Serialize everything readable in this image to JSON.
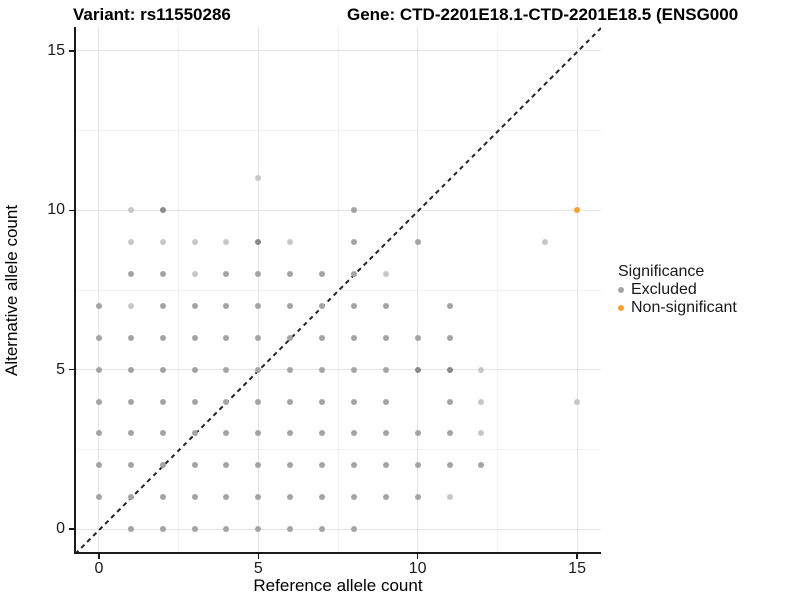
{
  "chart_data": {
    "type": "scatter",
    "titles": {
      "variant": "Variant: rs11550286",
      "gene": "Gene: CTD-2201E18.1-CTD-2201E18.5 (ENSG000"
    },
    "xlabel": "Reference allele count",
    "ylabel": "Alternative allele count",
    "xlim": [
      -0.75,
      15.75
    ],
    "ylim": [
      -0.75,
      15.75
    ],
    "x_ticks": [
      0,
      5,
      10,
      15
    ],
    "y_ticks": [
      0,
      5,
      10,
      15
    ],
    "minor_ticks": [
      2.5,
      7.5,
      12.5
    ],
    "grid": "major and minor, light gray, on white background",
    "identity_line": "black dashed y=x diagonal",
    "colors": {
      "excluded_light": "#C7C7C7",
      "excluded_mid": "#A4A4A4",
      "excluded_dark": "#8A8A8A",
      "non_significant": "#F9A02B",
      "grid_major": "#E4E4E4",
      "grid_minor": "#F2F2F2",
      "axis": "#1A1A1A"
    },
    "legend": {
      "title": "Significance",
      "position": "right",
      "items": [
        {
          "label": "Excluded",
          "color": "#A4A4A4"
        },
        {
          "label": "Non-significant",
          "color": "#F9A02B"
        }
      ]
    },
    "series": [
      {
        "name": "Excluded",
        "points": [
          [
            1,
            0,
            "m"
          ],
          [
            2,
            0,
            "m"
          ],
          [
            3,
            0,
            "m"
          ],
          [
            4,
            0,
            "m"
          ],
          [
            5,
            0,
            "m"
          ],
          [
            6,
            0,
            "m"
          ],
          [
            7,
            0,
            "m"
          ],
          [
            8,
            0,
            "m"
          ],
          [
            0,
            1,
            "m"
          ],
          [
            1,
            1,
            "m"
          ],
          [
            2,
            1,
            "m"
          ],
          [
            3,
            1,
            "m"
          ],
          [
            4,
            1,
            "m"
          ],
          [
            5,
            1,
            "m"
          ],
          [
            6,
            1,
            "m"
          ],
          [
            7,
            1,
            "m"
          ],
          [
            8,
            1,
            "m"
          ],
          [
            9,
            1,
            "m"
          ],
          [
            10,
            1,
            "m"
          ],
          [
            11,
            1,
            "l"
          ],
          [
            0,
            2,
            "m"
          ],
          [
            1,
            2,
            "m"
          ],
          [
            2,
            2,
            "m"
          ],
          [
            3,
            2,
            "m"
          ],
          [
            4,
            2,
            "m"
          ],
          [
            5,
            2,
            "m"
          ],
          [
            6,
            2,
            "m"
          ],
          [
            7,
            2,
            "m"
          ],
          [
            8,
            2,
            "m"
          ],
          [
            9,
            2,
            "m"
          ],
          [
            10,
            2,
            "m"
          ],
          [
            11,
            2,
            "m"
          ],
          [
            12,
            2,
            "m"
          ],
          [
            0,
            3,
            "m"
          ],
          [
            1,
            3,
            "m"
          ],
          [
            2,
            3,
            "m"
          ],
          [
            3,
            3,
            "m"
          ],
          [
            4,
            3,
            "m"
          ],
          [
            5,
            3,
            "m"
          ],
          [
            6,
            3,
            "m"
          ],
          [
            7,
            3,
            "m"
          ],
          [
            8,
            3,
            "m"
          ],
          [
            9,
            3,
            "m"
          ],
          [
            10,
            3,
            "m"
          ],
          [
            11,
            3,
            "m"
          ],
          [
            12,
            3,
            "l"
          ],
          [
            0,
            4,
            "m"
          ],
          [
            1,
            4,
            "m"
          ],
          [
            2,
            4,
            "m"
          ],
          [
            3,
            4,
            "m"
          ],
          [
            4,
            4,
            "m"
          ],
          [
            5,
            4,
            "m"
          ],
          [
            6,
            4,
            "m"
          ],
          [
            7,
            4,
            "m"
          ],
          [
            8,
            4,
            "m"
          ],
          [
            9,
            4,
            "m"
          ],
          [
            11,
            4,
            "m"
          ],
          [
            12,
            4,
            "l"
          ],
          [
            15,
            4,
            "l"
          ],
          [
            0,
            5,
            "m"
          ],
          [
            1,
            5,
            "m"
          ],
          [
            2,
            5,
            "m"
          ],
          [
            3,
            5,
            "m"
          ],
          [
            4,
            5,
            "m"
          ],
          [
            5,
            5,
            "m"
          ],
          [
            6,
            5,
            "m"
          ],
          [
            7,
            5,
            "m"
          ],
          [
            8,
            5,
            "m"
          ],
          [
            9,
            5,
            "m"
          ],
          [
            10,
            5,
            "d"
          ],
          [
            11,
            5,
            "d"
          ],
          [
            12,
            5,
            "l"
          ],
          [
            0,
            6,
            "m"
          ],
          [
            1,
            6,
            "m"
          ],
          [
            2,
            6,
            "m"
          ],
          [
            3,
            6,
            "m"
          ],
          [
            4,
            6,
            "m"
          ],
          [
            5,
            6,
            "m"
          ],
          [
            6,
            6,
            "m"
          ],
          [
            7,
            6,
            "m"
          ],
          [
            8,
            6,
            "m"
          ],
          [
            9,
            6,
            "m"
          ],
          [
            10,
            6,
            "m"
          ],
          [
            11,
            6,
            "m"
          ],
          [
            0,
            7,
            "m"
          ],
          [
            1,
            7,
            "l"
          ],
          [
            2,
            7,
            "m"
          ],
          [
            3,
            7,
            "m"
          ],
          [
            4,
            7,
            "m"
          ],
          [
            5,
            7,
            "m"
          ],
          [
            6,
            7,
            "m"
          ],
          [
            7,
            7,
            "m"
          ],
          [
            8,
            7,
            "m"
          ],
          [
            9,
            7,
            "m"
          ],
          [
            11,
            7,
            "m"
          ],
          [
            1,
            8,
            "m"
          ],
          [
            2,
            8,
            "m"
          ],
          [
            3,
            8,
            "l"
          ],
          [
            4,
            8,
            "m"
          ],
          [
            5,
            8,
            "m"
          ],
          [
            6,
            8,
            "m"
          ],
          [
            7,
            8,
            "m"
          ],
          [
            8,
            8,
            "m"
          ],
          [
            9,
            8,
            "l"
          ],
          [
            1,
            9,
            "l"
          ],
          [
            2,
            9,
            "l"
          ],
          [
            3,
            9,
            "l"
          ],
          [
            4,
            9,
            "l"
          ],
          [
            5,
            9,
            "d"
          ],
          [
            6,
            9,
            "l"
          ],
          [
            8,
            9,
            "m"
          ],
          [
            10,
            9,
            "m"
          ],
          [
            14,
            9,
            "l"
          ],
          [
            1,
            10,
            "l"
          ],
          [
            2,
            10,
            "d"
          ],
          [
            8,
            10,
            "m"
          ],
          [
            5,
            11,
            "l"
          ]
        ]
      },
      {
        "name": "Non-significant",
        "points": [
          [
            15,
            10,
            "o"
          ]
        ]
      }
    ]
  }
}
